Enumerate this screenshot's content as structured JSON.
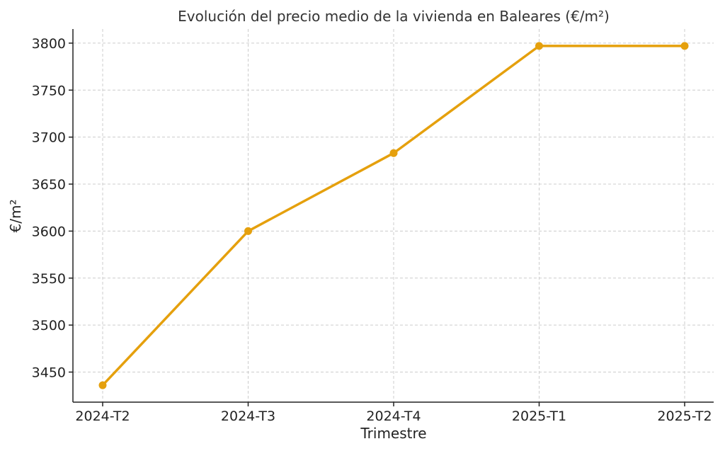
{
  "chart_data": {
    "type": "line",
    "title": "Evolución del precio medio de la vivienda en Baleares (€/m²)",
    "xlabel": "Trimestre",
    "ylabel": "€/m²",
    "categories": [
      "2024-T2",
      "2024-T3",
      "2024-T4",
      "2025-T1",
      "2025-T2"
    ],
    "series": [
      {
        "values": [
          3436,
          3600,
          3683,
          3797,
          3797
        ],
        "color": "#e5a00d"
      }
    ],
    "yticks": [
      3450,
      3500,
      3550,
      3600,
      3650,
      3700,
      3750,
      3800
    ],
    "ylim": [
      3418,
      3815
    ],
    "grid": true,
    "legend": "none"
  }
}
